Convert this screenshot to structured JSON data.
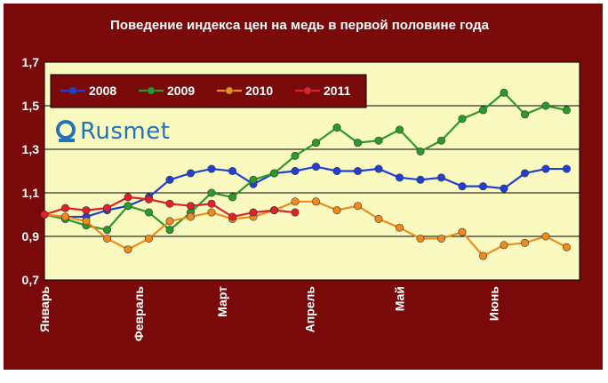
{
  "chart_data": {
    "type": "line",
    "title": "Поведение индекса цен на медь в первой половине года",
    "xlabel": "",
    "ylabel": "",
    "ylim": [
      0.7,
      1.7
    ],
    "yticks": [
      "0,7",
      "0,9",
      "1,1",
      "1,3",
      "1,5",
      "1,7"
    ],
    "month_labels": [
      "Январь",
      "Февраль",
      "Март",
      "Апрель",
      "Май",
      "Июнь"
    ],
    "legend_position": "top-left",
    "grid": true,
    "series": [
      {
        "name": "2008",
        "color": "#1f3fd6",
        "values": [
          1.0,
          0.99,
          0.99,
          1.02,
          1.04,
          1.08,
          1.16,
          1.19,
          1.21,
          1.2,
          1.14,
          1.19,
          1.2,
          1.22,
          1.2,
          1.2,
          1.21,
          1.17,
          1.16,
          1.17,
          1.13,
          1.13,
          1.12,
          1.19,
          1.21,
          1.21
        ]
      },
      {
        "name": "2009",
        "color": "#2a9a2a",
        "values": [
          1.0,
          0.98,
          0.95,
          0.93,
          1.04,
          1.01,
          0.93,
          1.01,
          1.1,
          1.08,
          1.16,
          1.19,
          1.27,
          1.33,
          1.4,
          1.33,
          1.34,
          1.39,
          1.29,
          1.34,
          1.44,
          1.48,
          1.56,
          1.46,
          1.5,
          1.48
        ]
      },
      {
        "name": "2010",
        "color": "#f08a1c",
        "values": [
          1.0,
          0.99,
          0.97,
          0.89,
          0.84,
          0.89,
          0.97,
          0.99,
          1.01,
          0.98,
          0.99,
          1.02,
          1.06,
          1.06,
          1.02,
          1.04,
          0.98,
          0.94,
          0.89,
          0.89,
          0.92,
          0.81,
          0.86,
          0.87,
          0.9,
          0.85
        ]
      },
      {
        "name": "2011",
        "color": "#e0202a",
        "values": [
          1.0,
          1.03,
          1.02,
          1.03,
          1.08,
          1.07,
          1.05,
          1.04,
          1.05,
          0.99,
          1.01,
          1.02,
          1.01
        ]
      }
    ]
  },
  "brand": {
    "name": "Rusmet",
    "icon": "rusmet-q-logo-icon",
    "accent": "#1f73b7"
  },
  "colors": {
    "frame": "#7a0a0a",
    "plot_bg": "#fafac0",
    "legend_bg": "#7a0a0a",
    "text": "#ffffff"
  }
}
